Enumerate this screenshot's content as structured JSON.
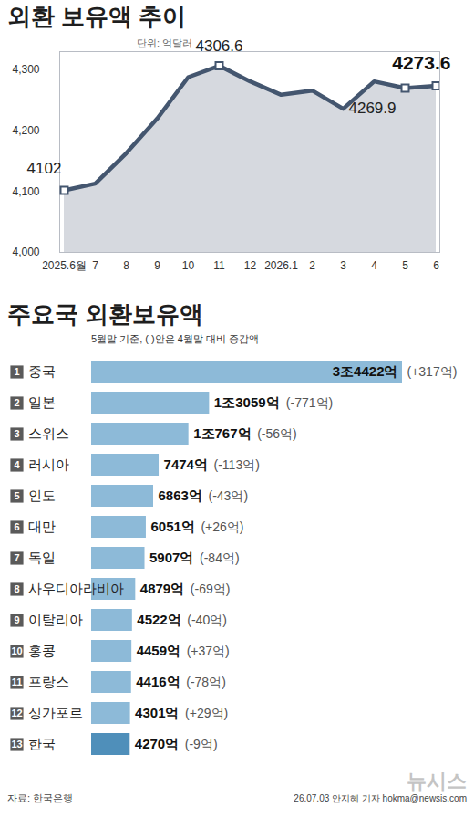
{
  "chart_data": [
    {
      "type": "line",
      "title": "외환 보유액 추이",
      "subtitle": "단위: 억달러",
      "categories": [
        "2025.6월",
        "7",
        "8",
        "9",
        "10",
        "11",
        "12",
        "2026.1",
        "2",
        "3",
        "4",
        "5",
        "6"
      ],
      "values": [
        4102,
        4113,
        4163,
        4220,
        4288,
        4306.6,
        4281,
        4259,
        4266,
        4236,
        4281,
        4269.9,
        4273.6
      ],
      "value_labels": [
        "4102",
        null,
        null,
        null,
        null,
        "4306.6",
        null,
        null,
        null,
        null,
        null,
        "4269.9",
        "4273.6"
      ],
      "data_labels": true,
      "color": "#44566f",
      "marker": "square",
      "ylim": [
        4000,
        4330
      ],
      "yticks": [
        4000,
        4100,
        4200,
        4300
      ],
      "grid": false
    },
    {
      "type": "bar",
      "orientation": "horizontal",
      "title": "주요국 외환보유액",
      "subtitle": "5월말 기준, ( )안은 4월말 대비 증감액",
      "ranks": [
        1,
        2,
        3,
        4,
        5,
        6,
        7,
        8,
        9,
        10,
        11,
        12,
        13
      ],
      "categories": [
        "중국",
        "일본",
        "스위스",
        "러시아",
        "인도",
        "대만",
        "독일",
        "사우디아라비아",
        "이탈리아",
        "홍콩",
        "프랑스",
        "싱가포르",
        "한국"
      ],
      "values": [
        34422,
        13059,
        10767,
        7474,
        6863,
        6051,
        5907,
        4879,
        4522,
        4459,
        4416,
        4301,
        4270
      ],
      "value_labels": [
        "3조4422억",
        "1조3059억",
        "1조767억",
        "7474억",
        "6863억",
        "6051억",
        "5907억",
        "4879억",
        "4522억",
        "4459억",
        "4416억",
        "4301억",
        "4270억"
      ],
      "change_labels": [
        "(+317억)",
        "(-771억)",
        "(-56억)",
        "(-113억)",
        "(-43억)",
        "(+26억)",
        "(-84억)",
        "(-69억)",
        "(-40억)",
        "(+37억)",
        "(-78억)",
        "(+29억)",
        "(-9억)"
      ],
      "colors": [
        "#8dbad8",
        "#8dbad8",
        "#8dbad8",
        "#8dbad8",
        "#8dbad8",
        "#8dbad8",
        "#8dbad8",
        "#8dbad8",
        "#8dbad8",
        "#8dbad8",
        "#8dbad8",
        "#8dbad8",
        "#4f8fba"
      ],
      "xlim": [
        0,
        34422
      ],
      "tick_labels": "y",
      "data_labels": true
    }
  ],
  "footer": {
    "source": "자료: 한국은행",
    "credit": "26.07.03 안지혜 기자 hokma@newsis.com",
    "logo": "뉴시스"
  }
}
